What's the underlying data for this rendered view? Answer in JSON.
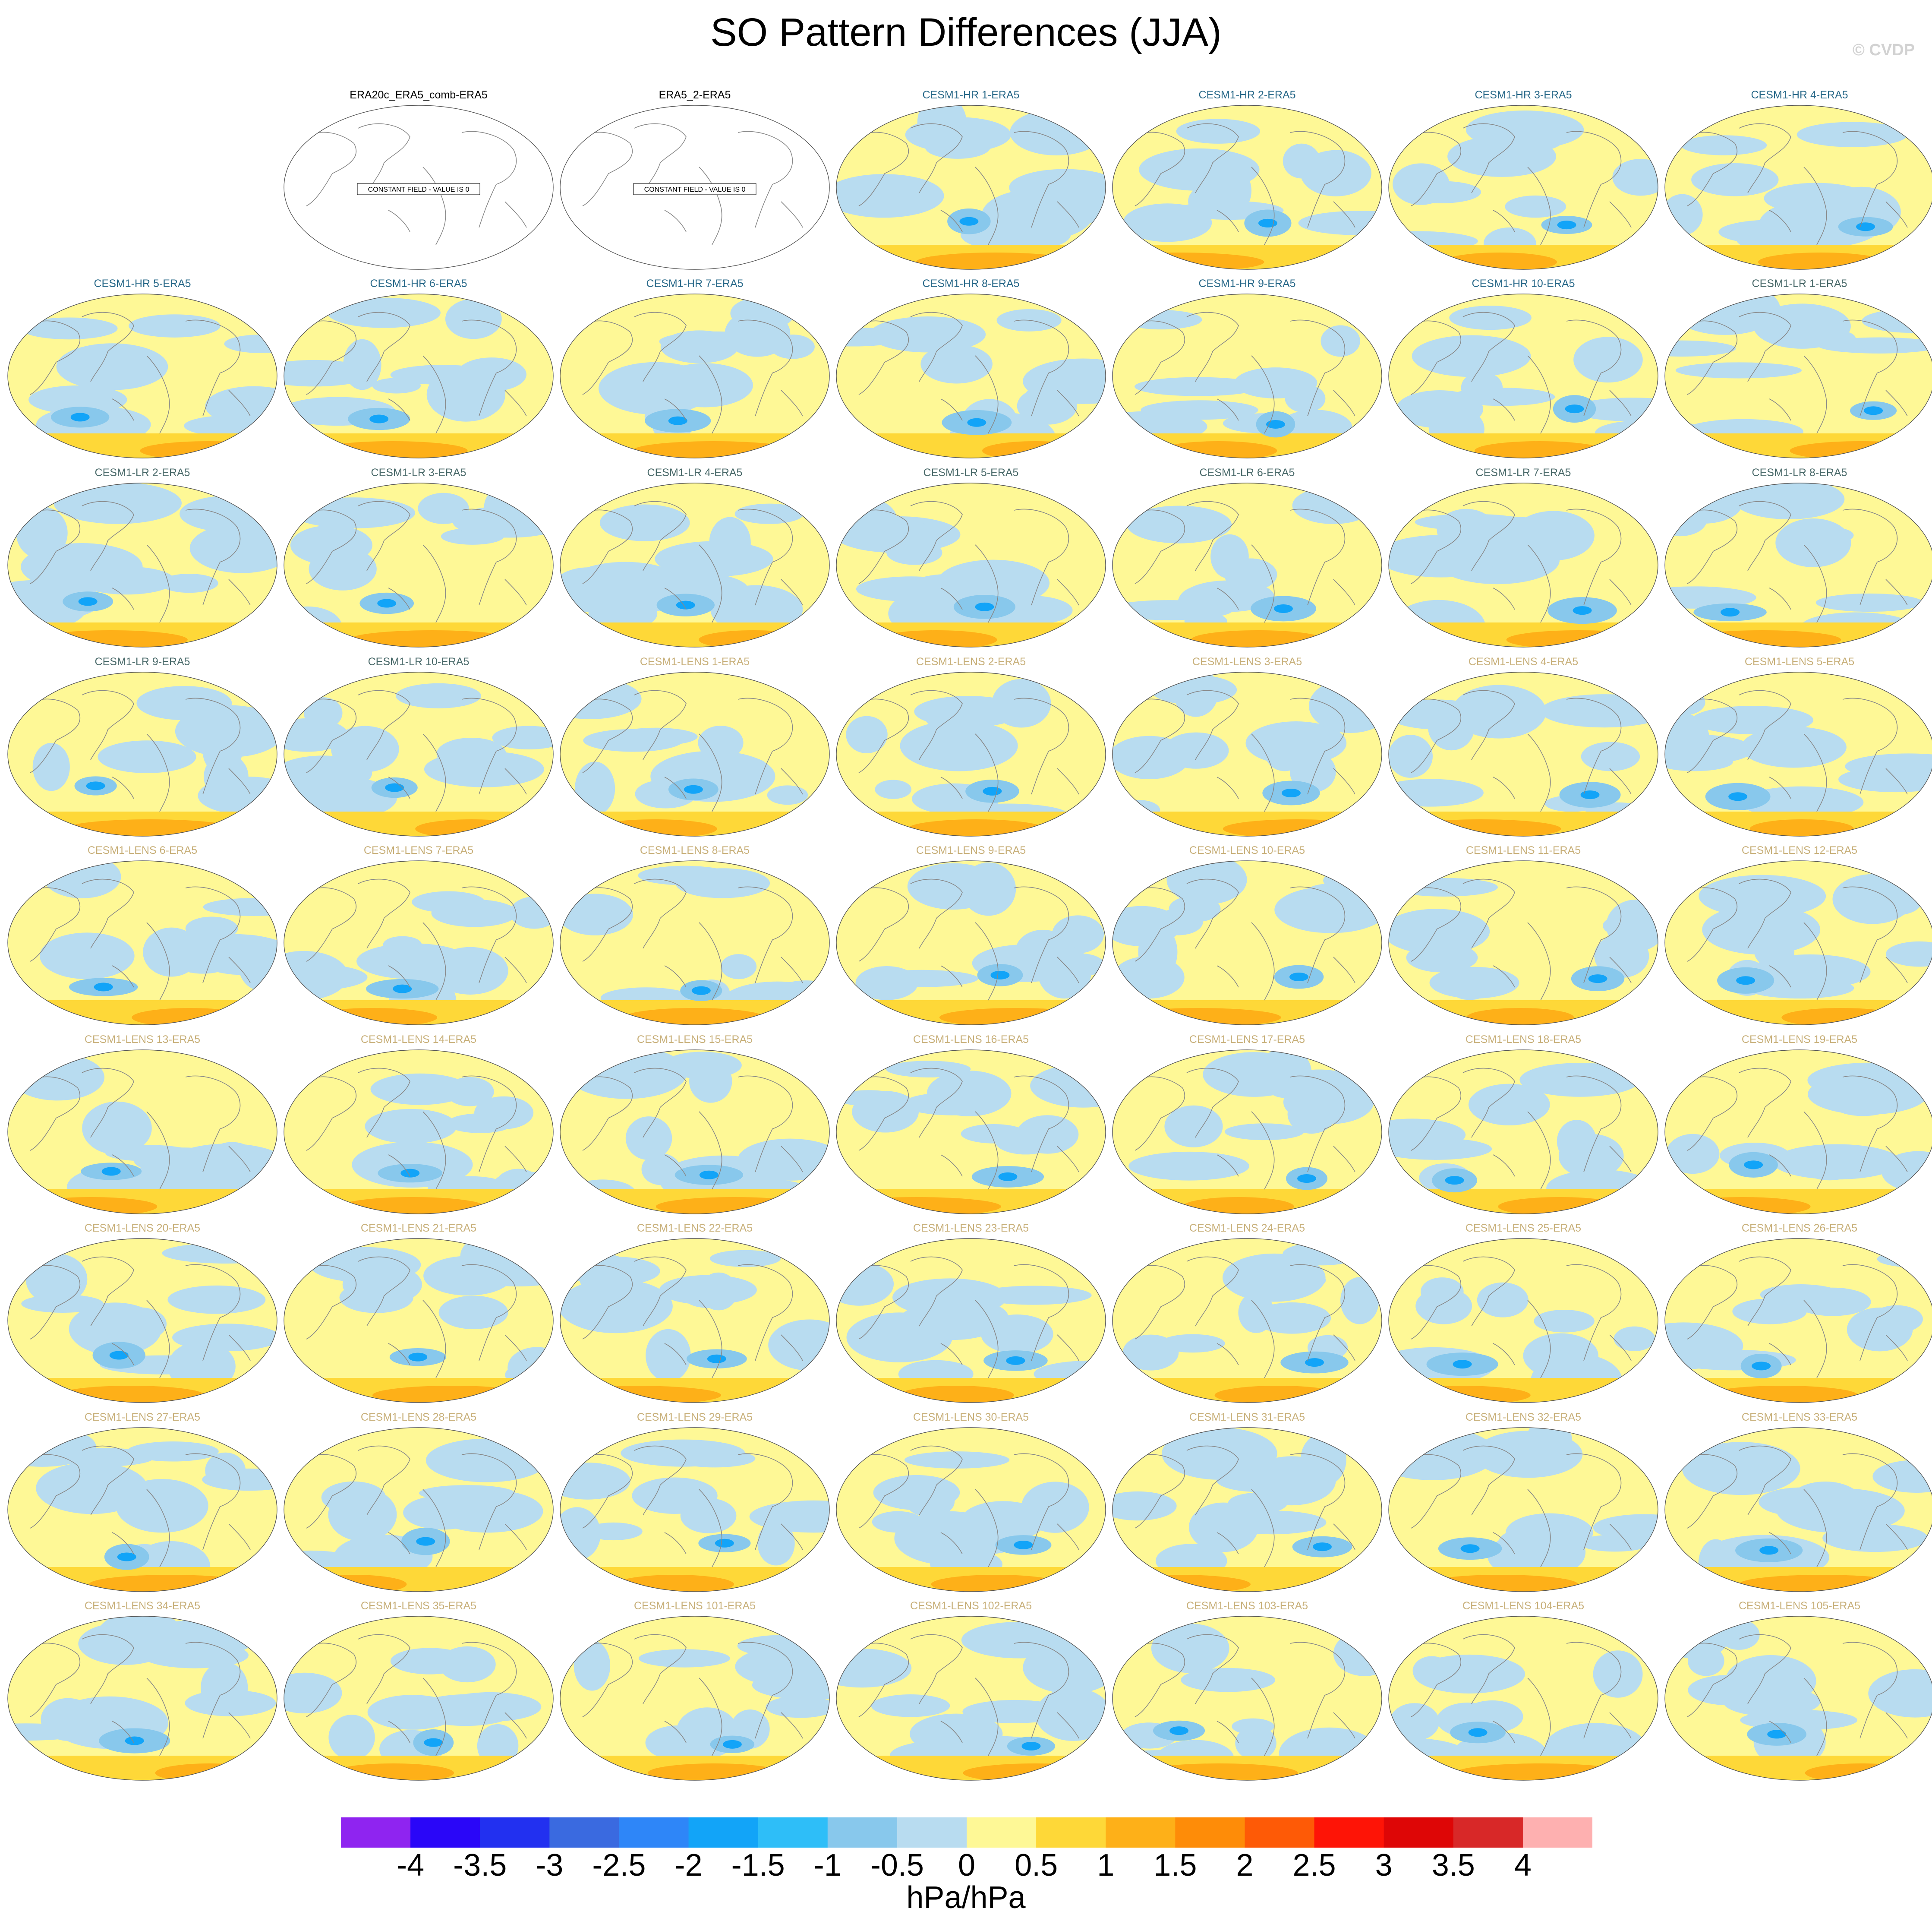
{
  "title": "SO Pattern Differences (JJA)",
  "credit": "© CVDP",
  "constant_field_text": "CONSTANT FIELD - VALUE IS 0",
  "label_colors": {
    "obs": "#000000",
    "hr": "#2a6a8a",
    "lr": "#4a6a6a",
    "lens": "#c8b07a"
  },
  "panels": [
    {
      "label": "ERA20c_ERA5_comb-ERA5",
      "group": "obs",
      "constant": true
    },
    {
      "label": "ERA5_2-ERA5",
      "group": "obs",
      "constant": true
    },
    {
      "label": "CESM1-HR 1-ERA5",
      "group": "hr"
    },
    {
      "label": "CESM1-HR 2-ERA5",
      "group": "hr"
    },
    {
      "label": "CESM1-HR 3-ERA5",
      "group": "hr"
    },
    {
      "label": "CESM1-HR 4-ERA5",
      "group": "hr"
    },
    {
      "label": "CESM1-HR 5-ERA5",
      "group": "hr"
    },
    {
      "label": "CESM1-HR 6-ERA5",
      "group": "hr"
    },
    {
      "label": "CESM1-HR 7-ERA5",
      "group": "hr"
    },
    {
      "label": "CESM1-HR 8-ERA5",
      "group": "hr"
    },
    {
      "label": "CESM1-HR 9-ERA5",
      "group": "hr"
    },
    {
      "label": "CESM1-HR 10-ERA5",
      "group": "hr"
    },
    {
      "label": "CESM1-LR 1-ERA5",
      "group": "lr"
    },
    {
      "label": "CESM1-LR 2-ERA5",
      "group": "lr"
    },
    {
      "label": "CESM1-LR 3-ERA5",
      "group": "lr"
    },
    {
      "label": "CESM1-LR 4-ERA5",
      "group": "lr"
    },
    {
      "label": "CESM1-LR 5-ERA5",
      "group": "lr"
    },
    {
      "label": "CESM1-LR 6-ERA5",
      "group": "lr"
    },
    {
      "label": "CESM1-LR 7-ERA5",
      "group": "lr"
    },
    {
      "label": "CESM1-LR 8-ERA5",
      "group": "lr"
    },
    {
      "label": "CESM1-LR 9-ERA5",
      "group": "lr"
    },
    {
      "label": "CESM1-LR 10-ERA5",
      "group": "lr"
    },
    {
      "label": "CESM1-LENS 1-ERA5",
      "group": "lens"
    },
    {
      "label": "CESM1-LENS 2-ERA5",
      "group": "lens"
    },
    {
      "label": "CESM1-LENS 3-ERA5",
      "group": "lens"
    },
    {
      "label": "CESM1-LENS 4-ERA5",
      "group": "lens"
    },
    {
      "label": "CESM1-LENS 5-ERA5",
      "group": "lens"
    },
    {
      "label": "CESM1-LENS 6-ERA5",
      "group": "lens"
    },
    {
      "label": "CESM1-LENS 7-ERA5",
      "group": "lens"
    },
    {
      "label": "CESM1-LENS 8-ERA5",
      "group": "lens"
    },
    {
      "label": "CESM1-LENS 9-ERA5",
      "group": "lens"
    },
    {
      "label": "CESM1-LENS 10-ERA5",
      "group": "lens"
    },
    {
      "label": "CESM1-LENS 11-ERA5",
      "group": "lens"
    },
    {
      "label": "CESM1-LENS 12-ERA5",
      "group": "lens"
    },
    {
      "label": "CESM1-LENS 13-ERA5",
      "group": "lens"
    },
    {
      "label": "CESM1-LENS 14-ERA5",
      "group": "lens"
    },
    {
      "label": "CESM1-LENS 15-ERA5",
      "group": "lens"
    },
    {
      "label": "CESM1-LENS 16-ERA5",
      "group": "lens"
    },
    {
      "label": "CESM1-LENS 17-ERA5",
      "group": "lens"
    },
    {
      "label": "CESM1-LENS 18-ERA5",
      "group": "lens"
    },
    {
      "label": "CESM1-LENS 19-ERA5",
      "group": "lens"
    },
    {
      "label": "CESM1-LENS 20-ERA5",
      "group": "lens"
    },
    {
      "label": "CESM1-LENS 21-ERA5",
      "group": "lens"
    },
    {
      "label": "CESM1-LENS 22-ERA5",
      "group": "lens"
    },
    {
      "label": "CESM1-LENS 23-ERA5",
      "group": "lens"
    },
    {
      "label": "CESM1-LENS 24-ERA5",
      "group": "lens"
    },
    {
      "label": "CESM1-LENS 25-ERA5",
      "group": "lens"
    },
    {
      "label": "CESM1-LENS 26-ERA5",
      "group": "lens"
    },
    {
      "label": "CESM1-LENS 27-ERA5",
      "group": "lens"
    },
    {
      "label": "CESM1-LENS 28-ERA5",
      "group": "lens"
    },
    {
      "label": "CESM1-LENS 29-ERA5",
      "group": "lens"
    },
    {
      "label": "CESM1-LENS 30-ERA5",
      "group": "lens"
    },
    {
      "label": "CESM1-LENS 31-ERA5",
      "group": "lens"
    },
    {
      "label": "CESM1-LENS 32-ERA5",
      "group": "lens"
    },
    {
      "label": "CESM1-LENS 33-ERA5",
      "group": "lens"
    },
    {
      "label": "CESM1-LENS 34-ERA5",
      "group": "lens"
    },
    {
      "label": "CESM1-LENS 35-ERA5",
      "group": "lens"
    },
    {
      "label": "CESM1-LENS 101-ERA5",
      "group": "lens"
    },
    {
      "label": "CESM1-LENS 102-ERA5",
      "group": "lens"
    },
    {
      "label": "CESM1-LENS 103-ERA5",
      "group": "lens"
    },
    {
      "label": "CESM1-LENS 104-ERA5",
      "group": "lens"
    },
    {
      "label": "CESM1-LENS 105-ERA5",
      "group": "lens"
    }
  ],
  "colorbar": {
    "units": "hPa/hPa",
    "ticks": [
      "-4",
      "-3.5",
      "-3",
      "-2.5",
      "-2",
      "-1.5",
      "-1",
      "-0.5",
      "0",
      "0.5",
      "1",
      "1.5",
      "2",
      "2.5",
      "3",
      "3.5",
      "4"
    ],
    "colors": [
      "#8f24f0",
      "#2a06f8",
      "#2230f0",
      "#3a6ae0",
      "#2e86f8",
      "#12a4f8",
      "#2ebef8",
      "#88c8ec",
      "#b8dcf0",
      "#fef896",
      "#fed838",
      "#feb018",
      "#fe8c08",
      "#fe5a06",
      "#fe1406",
      "#de0606",
      "#d82828",
      "#feb0b0"
    ]
  }
}
